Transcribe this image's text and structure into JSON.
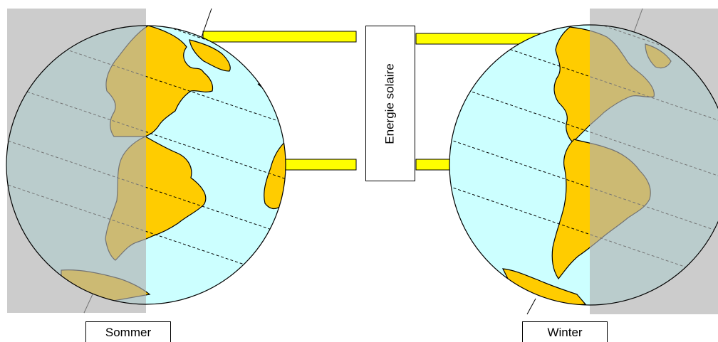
{
  "labels": {
    "summer": "Sommer",
    "winter": "Winter",
    "energy": "Energie solaire"
  },
  "colors": {
    "ocean": "#ccffff",
    "land": "#ffcc00",
    "shadow": "#b0b0b0",
    "sunbeam": "#ffff00",
    "outline": "#000000"
  }
}
